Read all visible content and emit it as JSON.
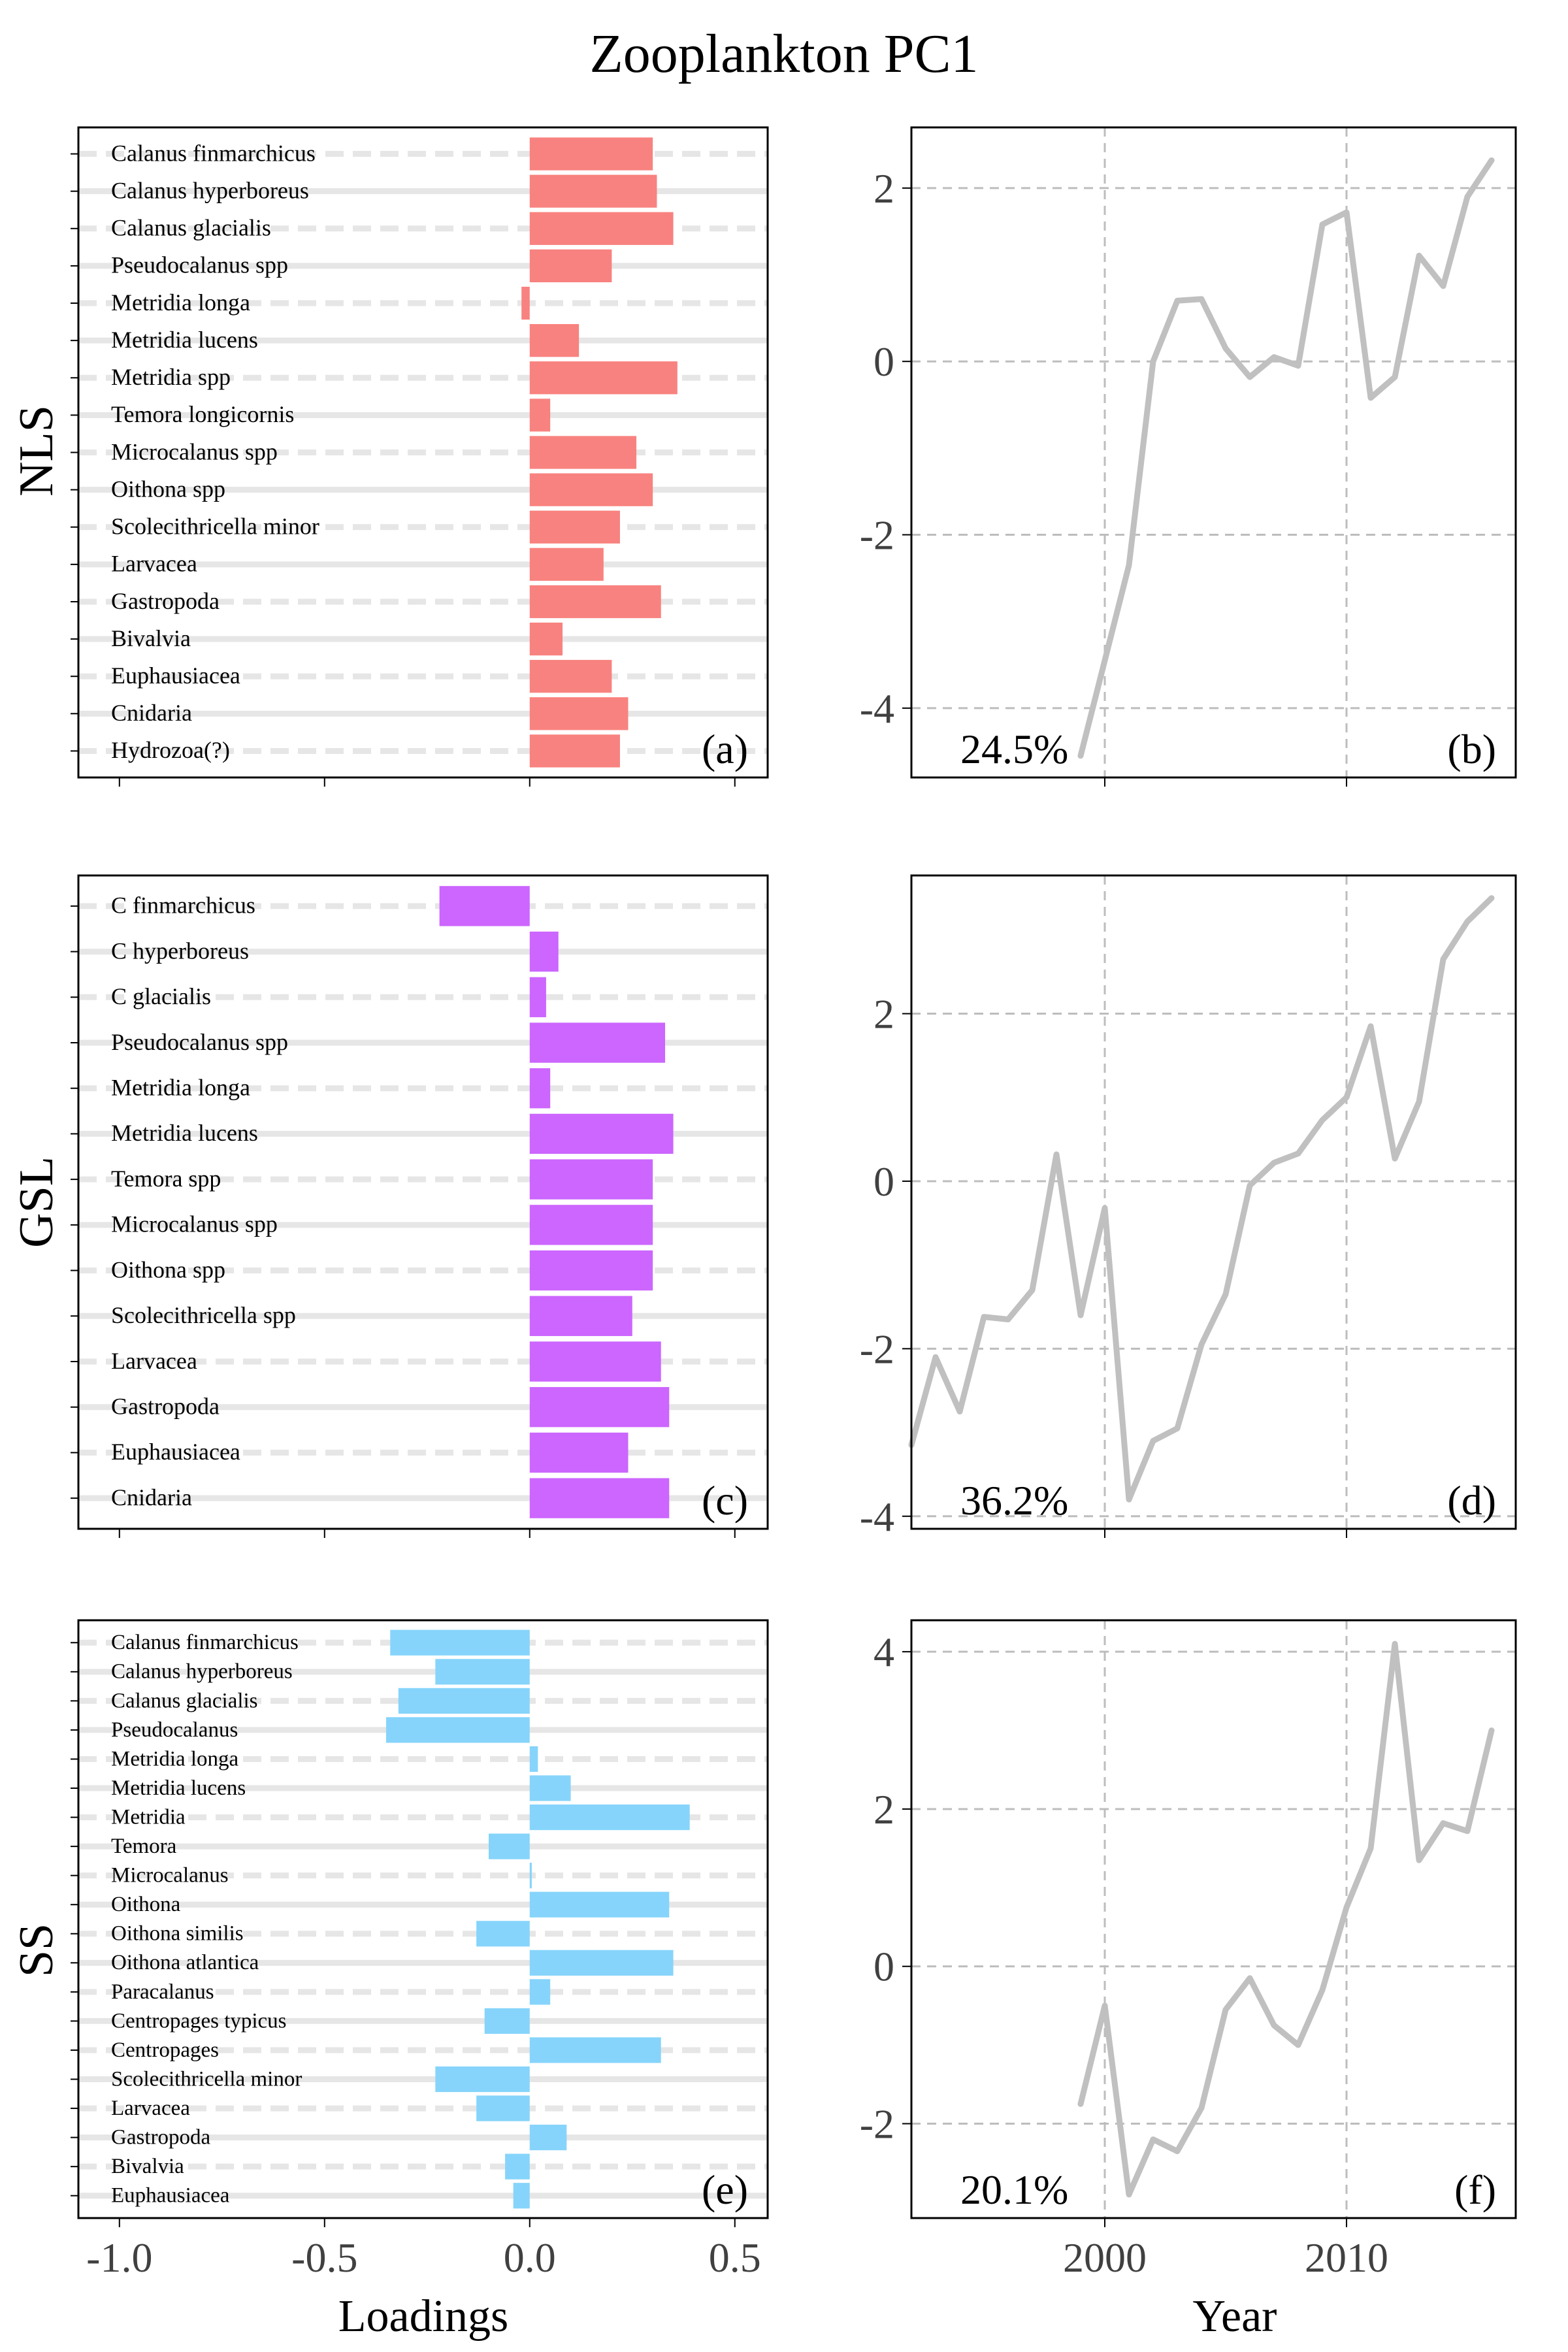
{
  "figure": {
    "title": "Zooplankton PC1"
  },
  "axes_text": {
    "x_left_label": "Loadings",
    "x_right_label": "Year",
    "x_left_ticks": [
      "-1.0",
      "-0.5",
      "0.0",
      "0.5"
    ],
    "x_right_ticks": [
      "2000",
      "2010"
    ]
  },
  "colors": {
    "NLS": "#f8827f",
    "GSL": "#cc66ff",
    "SS": "#86d4fb",
    "line": "#c0c0c0",
    "grid": "#e6e6e6",
    "vgrid": "#bdbdbd"
  },
  "chart_data": [
    {
      "type": "bar",
      "panel": "(a)",
      "region": "NLS",
      "categories": [
        "Calanus finmarchicus",
        "Calanus hyperboreus",
        "Calanus glacialis",
        "Pseudocalanus spp",
        "Metridia longa",
        "Metridia lucens",
        "Metridia spp",
        "Temora longicornis",
        "Microcalanus spp",
        "Oithona spp",
        "Scolecithricella minor",
        "Larvacea",
        "Gastropoda",
        "Bivalvia",
        "Euphausiacea",
        "Cnidaria",
        "Hydrozoa(?)"
      ],
      "values": [
        0.3,
        0.31,
        0.35,
        0.2,
        -0.02,
        0.12,
        0.36,
        0.05,
        0.26,
        0.3,
        0.22,
        0.18,
        0.32,
        0.08,
        0.2,
        0.24,
        0.22
      ],
      "xlim": [
        -1.1,
        0.58
      ],
      "xlabel": "Loadings"
    },
    {
      "type": "line",
      "panel": "(b)",
      "region": "NLS",
      "variance": "24.5%",
      "x": [
        1999,
        2000,
        2001,
        2002,
        2003,
        2004,
        2005,
        2006,
        2007,
        2008,
        2009,
        2010,
        2011,
        2012,
        2013,
        2014,
        2015,
        2016
      ],
      "y": [
        -4.55,
        -3.45,
        -2.35,
        0.0,
        0.7,
        0.72,
        0.15,
        -0.18,
        0.05,
        -0.05,
        1.58,
        1.72,
        -0.42,
        -0.18,
        1.22,
        0.87,
        1.9,
        2.32
      ],
      "xlim": [
        1992,
        2017
      ],
      "ylim": [
        -4.8,
        2.7
      ],
      "yticks": [
        "-4",
        "-2",
        "0",
        "2"
      ],
      "xlabel": "Year"
    },
    {
      "type": "bar",
      "panel": "(c)",
      "region": "GSL",
      "categories": [
        "C  finmarchicus",
        "C  hyperboreus",
        "C  glacialis",
        "Pseudocalanus spp",
        "Metridia longa",
        "Metridia lucens",
        "Temora spp",
        "Microcalanus spp",
        "Oithona spp",
        "Scolecithricella spp",
        "Larvacea",
        "Gastropoda",
        "Euphausiacea",
        "Cnidaria"
      ],
      "values": [
        -0.22,
        0.07,
        0.04,
        0.33,
        0.05,
        0.35,
        0.3,
        0.3,
        0.3,
        0.25,
        0.32,
        0.34,
        0.24,
        0.34
      ],
      "xlim": [
        -1.1,
        0.58
      ],
      "xlabel": "Loadings"
    },
    {
      "type": "line",
      "panel": "(d)",
      "region": "GSL",
      "variance": "36.2%",
      "x": [
        1992,
        1993,
        1994,
        1995,
        1996,
        1997,
        1998,
        1999,
        2000,
        2001,
        2002,
        2003,
        2004,
        2005,
        2006,
        2007,
        2008,
        2009,
        2010,
        2011,
        2012,
        2013,
        2014,
        2015,
        2016
      ],
      "y": [
        -3.15,
        -2.1,
        -2.75,
        -1.62,
        -1.65,
        -1.3,
        0.32,
        -1.6,
        -0.32,
        -3.8,
        -3.1,
        -2.95,
        -1.95,
        -1.35,
        -0.05,
        0.22,
        0.33,
        0.73,
        1.0,
        1.85,
        0.27,
        0.95,
        2.65,
        3.1,
        3.38
      ],
      "xlim": [
        1992,
        2017
      ],
      "ylim": [
        -4.15,
        3.65
      ],
      "yticks": [
        "-4",
        "-2",
        "0",
        "2"
      ],
      "xlabel": "Year"
    },
    {
      "type": "bar",
      "panel": "(e)",
      "region": "SS",
      "categories": [
        "Calanus finmarchicus",
        "Calanus hyperboreus",
        "Calanus glacialis",
        "Pseudocalanus",
        "Metridia longa",
        "Metridia lucens",
        "Metridia",
        "Temora",
        "Microcalanus",
        "Oithona",
        "Oithona similis",
        "Oithona atlantica",
        "Paracalanus",
        "Centropages typicus",
        "Centropages",
        "Scolecithricella minor",
        "Larvacea",
        "Gastropoda",
        "Bivalvia",
        "Euphausiacea"
      ],
      "values": [
        -0.34,
        -0.23,
        -0.32,
        -0.35,
        0.02,
        0.1,
        0.39,
        -0.1,
        0.005,
        0.34,
        -0.13,
        0.35,
        0.05,
        -0.11,
        0.32,
        -0.23,
        -0.13,
        0.09,
        -0.06,
        -0.04
      ],
      "xlim": [
        -1.1,
        0.58
      ],
      "xlabel": "Loadings"
    },
    {
      "type": "line",
      "panel": "(f)",
      "region": "SS",
      "variance": "20.1%",
      "x": [
        1999,
        2000,
        2001,
        2002,
        2003,
        2004,
        2005,
        2006,
        2007,
        2008,
        2009,
        2010,
        2011,
        2012,
        2013,
        2014,
        2015,
        2016
      ],
      "y": [
        -1.75,
        -0.5,
        -2.9,
        -2.2,
        -2.35,
        -1.8,
        -0.55,
        -0.15,
        -0.75,
        -1.0,
        -0.3,
        0.75,
        1.5,
        4.1,
        1.35,
        1.82,
        1.72,
        3.0
      ],
      "xlim": [
        1992,
        2017
      ],
      "ylim": [
        -3.2,
        4.4
      ],
      "yticks": [
        "-2",
        "0",
        "2",
        "4"
      ],
      "xlabel": "Year"
    }
  ]
}
